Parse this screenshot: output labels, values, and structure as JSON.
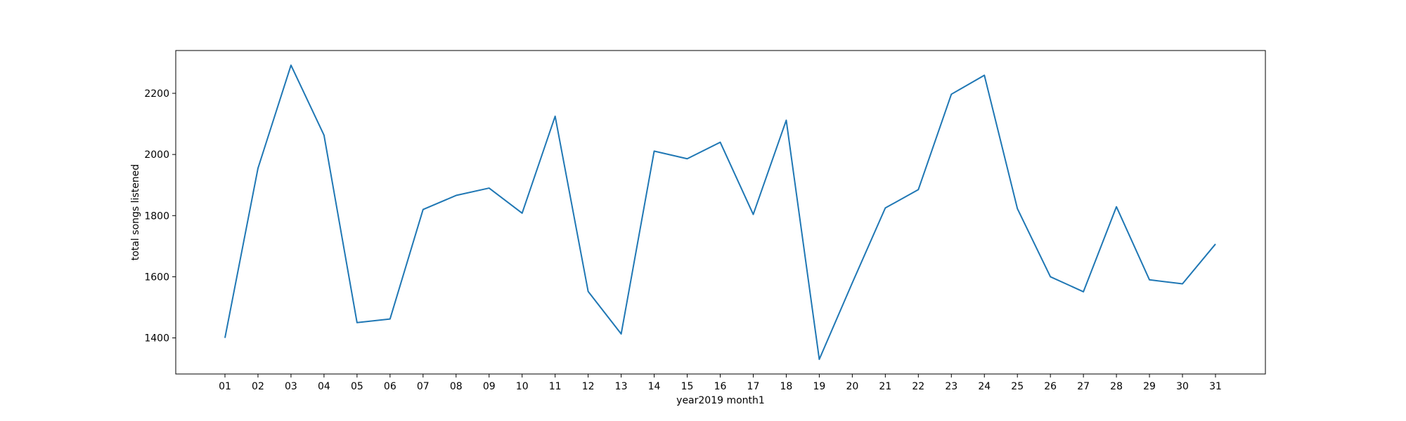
{
  "chart_data": {
    "type": "line",
    "title": "",
    "xlabel": "year2019 month1",
    "ylabel": "total songs listened",
    "categories": [
      "01",
      "02",
      "03",
      "04",
      "05",
      "06",
      "07",
      "08",
      "09",
      "10",
      "11",
      "12",
      "13",
      "14",
      "15",
      "16",
      "17",
      "18",
      "19",
      "20",
      "21",
      "22",
      "23",
      "24",
      "25",
      "26",
      "27",
      "28",
      "29",
      "30",
      "31"
    ],
    "series": [
      {
        "color": "#1f77b4",
        "values": [
          1400,
          1955,
          2292,
          2063,
          1450,
          1462,
          1820,
          1866,
          1890,
          1808,
          2125,
          1552,
          1413,
          2011,
          1986,
          2040,
          1804,
          2112,
          1330,
          1580,
          1825,
          1885,
          2197,
          2259,
          1823,
          1600,
          1551,
          1829,
          1590,
          1577,
          1707
        ]
      }
    ],
    "ylim": [
      1282,
      2340
    ],
    "yticks": [
      1400,
      1600,
      1800,
      2000,
      2200
    ],
    "grid": false,
    "legend": "none"
  }
}
